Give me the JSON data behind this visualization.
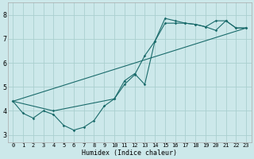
{
  "xlabel": "Humidex (Indice chaleur)",
  "xlim": [
    -0.5,
    23.5
  ],
  "ylim": [
    2.7,
    8.5
  ],
  "yticks": [
    3,
    4,
    5,
    6,
    7,
    8
  ],
  "xticks": [
    0,
    1,
    2,
    3,
    4,
    5,
    6,
    7,
    8,
    9,
    10,
    11,
    12,
    13,
    14,
    15,
    16,
    17,
    18,
    19,
    20,
    21,
    22,
    23
  ],
  "bg_color": "#cce8ea",
  "grid_color": "#aacfcf",
  "line_color": "#1a6b6b",
  "line1_x": [
    0,
    1,
    2,
    3,
    4,
    5,
    6,
    7,
    8,
    9,
    10,
    11,
    12,
    13,
    14,
    15,
    16,
    17,
    18,
    19,
    20,
    21,
    22,
    23
  ],
  "line1_y": [
    4.4,
    3.9,
    3.7,
    4.0,
    3.85,
    3.4,
    3.2,
    3.32,
    3.6,
    4.2,
    4.5,
    5.1,
    5.5,
    6.3,
    6.9,
    7.85,
    7.75,
    7.65,
    7.6,
    7.5,
    7.75,
    7.75,
    7.45,
    7.45
  ],
  "line2_x": [
    0,
    4,
    10,
    11,
    12,
    13,
    14,
    15,
    16,
    17,
    18,
    19,
    20,
    21,
    22,
    23
  ],
  "line2_y": [
    4.4,
    4.0,
    4.5,
    5.25,
    5.55,
    5.1,
    6.9,
    7.65,
    7.65,
    7.65,
    7.6,
    7.5,
    7.35,
    7.75,
    7.45,
    7.45
  ],
  "line3_x": [
    0,
    23
  ],
  "line3_y": [
    4.4,
    7.45
  ]
}
